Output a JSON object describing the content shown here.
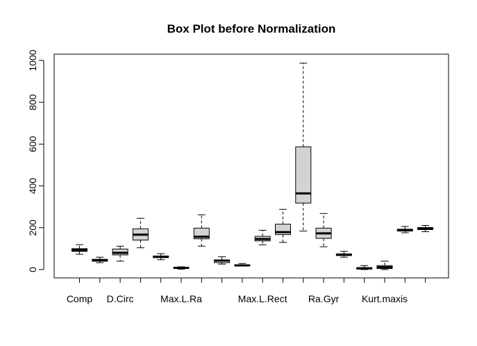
{
  "chart_data": {
    "type": "boxplot",
    "title": "Box Plot before Normalization",
    "xlabel": "",
    "ylabel": "",
    "ylim": [
      -40,
      1030
    ],
    "yticks": [
      0,
      200,
      400,
      600,
      800,
      1000
    ],
    "box_fill": "#d3d3d3",
    "categories": [
      "Comp",
      "",
      "D.Circ",
      "",
      "",
      "Max.L.Ra",
      "",
      "",
      "",
      "Max.L.Rect",
      "",
      "",
      "Ra.Gyr",
      "",
      "",
      "Kurt.maxis",
      "",
      ""
    ],
    "boxes": [
      {
        "min": 73,
        "q1": 87,
        "median": 93,
        "q3": 100,
        "max": 119
      },
      {
        "min": 33,
        "q1": 40,
        "median": 44,
        "q3": 49,
        "max": 59
      },
      {
        "min": 40,
        "q1": 70,
        "median": 80,
        "q3": 98,
        "max": 112
      },
      {
        "min": 104,
        "q1": 141,
        "median": 167,
        "q3": 195,
        "max": 245
      },
      {
        "min": 47,
        "q1": 57,
        "median": 61,
        "q3": 65,
        "max": 76
      },
      {
        "min": 2,
        "q1": 7,
        "median": 8,
        "q3": 10,
        "max": 13
      },
      {
        "min": 112,
        "q1": 147,
        "median": 157,
        "q3": 198,
        "max": 262
      },
      {
        "min": 26,
        "q1": 33,
        "median": 43,
        "q3": 46,
        "max": 61
      },
      {
        "min": 17,
        "q1": 19,
        "median": 20,
        "q3": 23,
        "max": 29
      },
      {
        "min": 118,
        "q1": 137,
        "median": 146,
        "q3": 159,
        "max": 188
      },
      {
        "min": 130,
        "q1": 167,
        "median": 179,
        "q3": 217,
        "max": 288
      },
      {
        "min": 184,
        "q1": 318,
        "median": 364,
        "q3": 587,
        "max": 987
      },
      {
        "min": 109,
        "q1": 149,
        "median": 173,
        "q3": 198,
        "max": 268
      },
      {
        "min": 59,
        "q1": 67,
        "median": 71,
        "q3": 75,
        "max": 87
      },
      {
        "min": 0,
        "q1": 2,
        "median": 6,
        "q3": 9,
        "max": 19
      },
      {
        "min": 0,
        "q1": 5,
        "median": 11,
        "q3": 19,
        "max": 40
      },
      {
        "min": 176,
        "q1": 184,
        "median": 189,
        "q3": 193,
        "max": 206
      },
      {
        "min": 181,
        "q1": 191,
        "median": 197,
        "q3": 201,
        "max": 211
      }
    ]
  }
}
